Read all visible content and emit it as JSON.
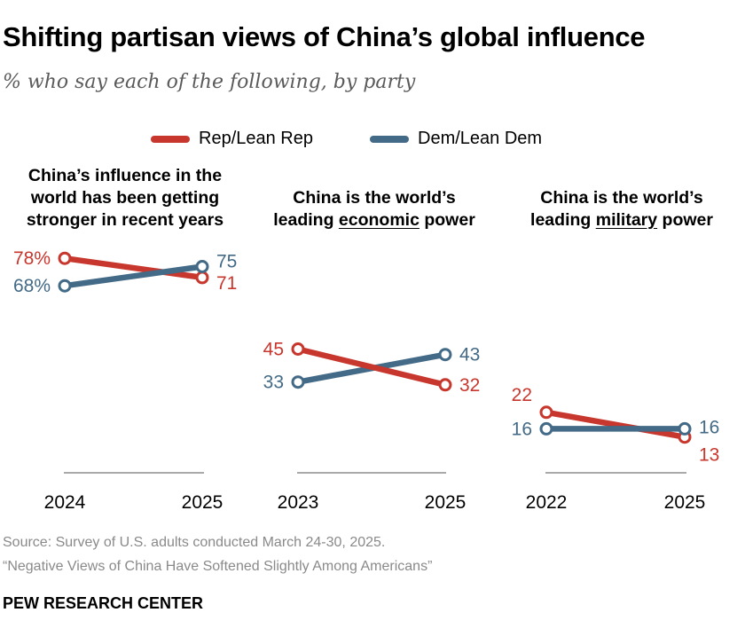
{
  "header": {
    "title": "Shifting partisan views of China’s global influence",
    "subtitle": "% who say each of the following, by party"
  },
  "legend": {
    "rep_label": "Rep/Lean Rep",
    "dem_label": "Dem/Lean Dem"
  },
  "colors": {
    "rep": "#c8372d",
    "dem": "#436a86",
    "axis": "#a9a9a9"
  },
  "chart_data": {
    "type": "line",
    "title": "Shifting partisan views of China’s global influence",
    "ylabel": "% who say each of the following, by party",
    "ylim": [
      0,
      100
    ],
    "panels": [
      {
        "title_lines": [
          "China’s influence in the",
          "world has been getting",
          "stronger in recent years"
        ],
        "x": [
          "2024",
          "2025"
        ],
        "series": [
          {
            "name": "Rep/Lean Rep",
            "values": [
              78,
              71
            ],
            "labels": [
              "78%",
              "71"
            ]
          },
          {
            "name": "Dem/Lean Dem",
            "values": [
              68,
              75
            ],
            "labels": [
              "68%",
              "75"
            ]
          }
        ]
      },
      {
        "title_line1": "China is the world’s",
        "title_pre": "leading ",
        "title_emph": "economic",
        "title_post": " power",
        "x": [
          "2023",
          "2025"
        ],
        "series": [
          {
            "name": "Rep/Lean Rep",
            "values": [
              45,
              32
            ],
            "labels": [
              "45",
              "32"
            ]
          },
          {
            "name": "Dem/Lean Dem",
            "values": [
              33,
              43
            ],
            "labels": [
              "33",
              "43"
            ]
          }
        ]
      },
      {
        "title_line1": "China is the world’s",
        "title_pre": "leading ",
        "title_emph": "military",
        "title_post": " power",
        "x": [
          "2022",
          "2025"
        ],
        "series": [
          {
            "name": "Rep/Lean Rep",
            "values": [
              22,
              13
            ],
            "labels": [
              "22",
              "13"
            ]
          },
          {
            "name": "Dem/Lean Dem",
            "values": [
              16,
              16
            ],
            "labels": [
              "16",
              "16"
            ]
          }
        ]
      }
    ]
  },
  "footer": {
    "source": "Source: Survey of U.S. adults conducted March 24-30, 2025.",
    "report": "“Negative Views of China Have Softened Slightly Among Americans”",
    "brand": "PEW RESEARCH CENTER"
  }
}
